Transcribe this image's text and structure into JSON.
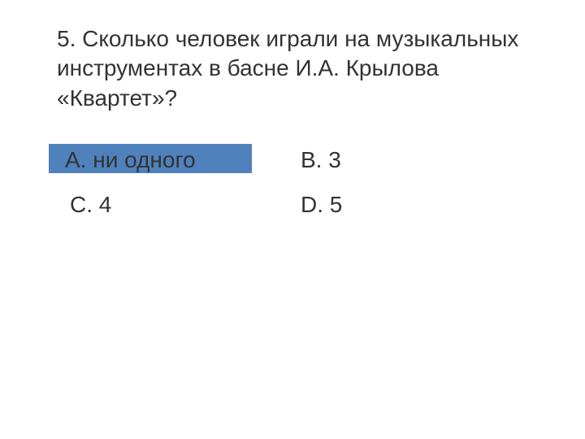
{
  "question": {
    "number": "5",
    "text": "5. Сколько человек играли на музыкальных инструментах в басне И.А. Крылова «Квартет»?",
    "font_size": 28,
    "text_color": "#333333"
  },
  "options": {
    "a": {
      "label": "А. ни одного",
      "highlighted": true
    },
    "b": {
      "label": "В. 3",
      "highlighted": false
    },
    "c": {
      "label": "С. 4",
      "highlighted": false
    },
    "d": {
      "label": "D. 5",
      "highlighted": false
    }
  },
  "styling": {
    "background_color": "#ffffff",
    "highlight_color": "#4f81bd",
    "highlight_width": 250,
    "font_family": "Arial",
    "layout": "2x2-grid"
  }
}
